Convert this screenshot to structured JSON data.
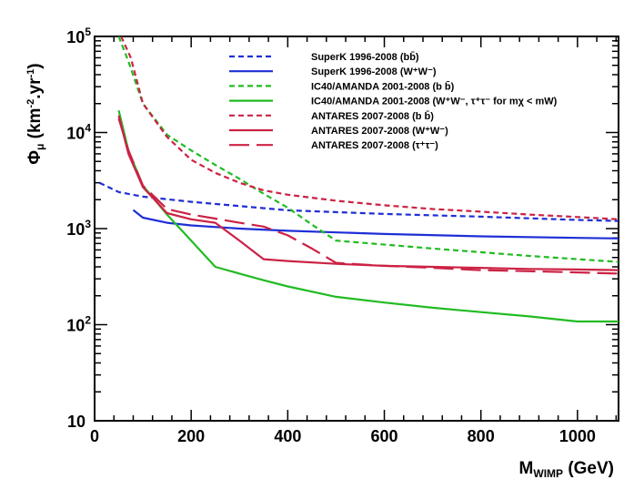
{
  "chart_data": {
    "type": "line",
    "xlabel": "M_WIMP (GeV)",
    "xlabel_main": "M",
    "xlabel_sub": "WIMP",
    "xlabel_unit": " (GeV)",
    "ylabel": "Φμ (km⁻²·yr⁻¹)",
    "ylabel_phi": "Φ",
    "ylabel_mu": "μ",
    "ylabel_rest": " (km",
    "ylabel_exp1": "-2",
    "ylabel_mid": ".yr",
    "ylabel_exp2": "-1",
    "ylabel_close": ")",
    "xlim": [
      0,
      1085
    ],
    "ylim": [
      10,
      100000
    ],
    "yscale": "log",
    "grid": false,
    "legend_position": "top-right",
    "xticks": [
      0,
      200,
      400,
      600,
      800,
      1000
    ],
    "yticks": [
      {
        "base": "10",
        "exp": "5",
        "value": 100000
      },
      {
        "base": "10",
        "exp": "4",
        "value": 10000
      },
      {
        "base": "10",
        "exp": "3",
        "value": 1000
      },
      {
        "base": "10",
        "exp": "2",
        "value": 100
      },
      {
        "base": "10",
        "exp": "",
        "value": 10
      }
    ],
    "series": [
      {
        "name": "SuperK 1996-2008 (bb̄)",
        "color": "#1f2fd6",
        "dash": "short",
        "x": [
          10,
          50,
          100,
          200,
          400,
          600,
          800,
          1000,
          1085
        ],
        "y": [
          3000,
          2400,
          2150,
          1900,
          1550,
          1420,
          1330,
          1230,
          1200
        ]
      },
      {
        "name": "SuperK 1996-2008 (W⁺W⁻)",
        "color": "#1f2fd6",
        "dash": "solid",
        "x": [
          80,
          100,
          150,
          200,
          300,
          400,
          600,
          800,
          1000,
          1085
        ],
        "y": [
          1560,
          1300,
          1150,
          1080,
          1000,
          950,
          880,
          830,
          800,
          790
        ]
      },
      {
        "name": "IC40/AMANDA 2001-2008 (b b̄)",
        "color": "#22bb22",
        "dash": "short",
        "x": [
          50,
          70,
          100,
          150,
          200,
          250,
          300,
          350,
          400,
          450,
          500,
          700,
          900,
          1085
        ],
        "y": [
          100000,
          55000,
          20000,
          9500,
          6500,
          4600,
          3300,
          2300,
          1650,
          1100,
          750,
          620,
          520,
          450
        ]
      },
      {
        "name": "IC40/AMANDA 2001-2008 (W⁺W⁻, τ⁺τ⁻ for mχ < mW)",
        "color": "#22bb22",
        "dash": "solid",
        "x": [
          50,
          70,
          100,
          150,
          200,
          250,
          300,
          350,
          400,
          500,
          600,
          700,
          800,
          900,
          1000,
          1085
        ],
        "y": [
          17000,
          6500,
          2800,
          1400,
          750,
          400,
          340,
          290,
          250,
          195,
          170,
          150,
          135,
          122,
          108,
          108
        ]
      },
      {
        "name": "ANTARES 2007-2008 (b b̄)",
        "color": "#cc2244",
        "dash": "short",
        "x": [
          55,
          75,
          100,
          150,
          200,
          250,
          300,
          350,
          400,
          500,
          600,
          700,
          800,
          900,
          1000,
          1085
        ],
        "y": [
          100000,
          60000,
          20000,
          9000,
          5200,
          3800,
          3000,
          2500,
          2250,
          1950,
          1750,
          1600,
          1500,
          1400,
          1320,
          1250
        ]
      },
      {
        "name": "ANTARES 2007-2008 (W⁺W⁻)",
        "color": "#cc2244",
        "dash": "solid",
        "x": [
          50,
          70,
          100,
          150,
          200,
          250,
          300,
          350,
          400,
          500,
          600,
          700,
          800,
          900,
          1000,
          1085
        ],
        "y": [
          15000,
          6000,
          2700,
          1450,
          1250,
          1150,
          750,
          480,
          460,
          430,
          410,
          400,
          390,
          380,
          375,
          370
        ]
      },
      {
        "name": "ANTARES 2007-2008 (τ⁺τ⁻)",
        "color": "#cc2244",
        "dash": "long",
        "x": [
          50,
          70,
          100,
          150,
          200,
          250,
          300,
          350,
          400,
          450,
          500,
          600,
          700,
          800,
          900,
          1000,
          1085
        ],
        "y": [
          14000,
          6500,
          2800,
          1600,
          1400,
          1270,
          1150,
          1050,
          850,
          620,
          440,
          410,
          390,
          370,
          360,
          350,
          340
        ]
      }
    ]
  }
}
